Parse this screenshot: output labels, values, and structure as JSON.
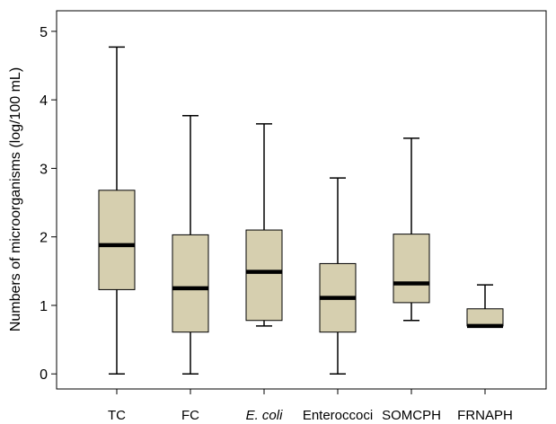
{
  "chart_data": {
    "type": "boxplot",
    "title": "",
    "xlabel": "",
    "ylabel": "Numbers of microorganisms (log/100 mL)",
    "ylim": [
      -0.22,
      5.3
    ],
    "yticks": [
      0,
      1,
      2,
      3,
      4,
      5
    ],
    "grid": false,
    "legend": "none",
    "colors": {
      "box_fill": "#d6cfaf",
      "stroke": "#000000"
    },
    "categories": [
      {
        "label": "TC",
        "italic": false,
        "min": 0.0,
        "q1": 1.23,
        "median": 1.88,
        "q3": 2.68,
        "max": 4.77
      },
      {
        "label": "FC",
        "italic": false,
        "min": 0.0,
        "q1": 0.61,
        "median": 1.25,
        "q3": 2.03,
        "max": 3.77
      },
      {
        "label": "E. coli",
        "italic": true,
        "min": 0.7,
        "q1": 0.78,
        "median": 1.49,
        "q3": 2.1,
        "max": 3.65
      },
      {
        "label": "Enteroccoci",
        "italic": false,
        "min": 0.0,
        "q1": 0.61,
        "median": 1.11,
        "q3": 1.61,
        "max": 2.86
      },
      {
        "label": "SOMCPH",
        "italic": false,
        "min": 0.78,
        "q1": 1.04,
        "median": 1.32,
        "q3": 2.04,
        "max": 3.44
      },
      {
        "label": "FRNAPH",
        "italic": false,
        "min": 0.7,
        "q1": 0.7,
        "median": 0.7,
        "q3": 0.95,
        "max": 1.3
      }
    ]
  }
}
